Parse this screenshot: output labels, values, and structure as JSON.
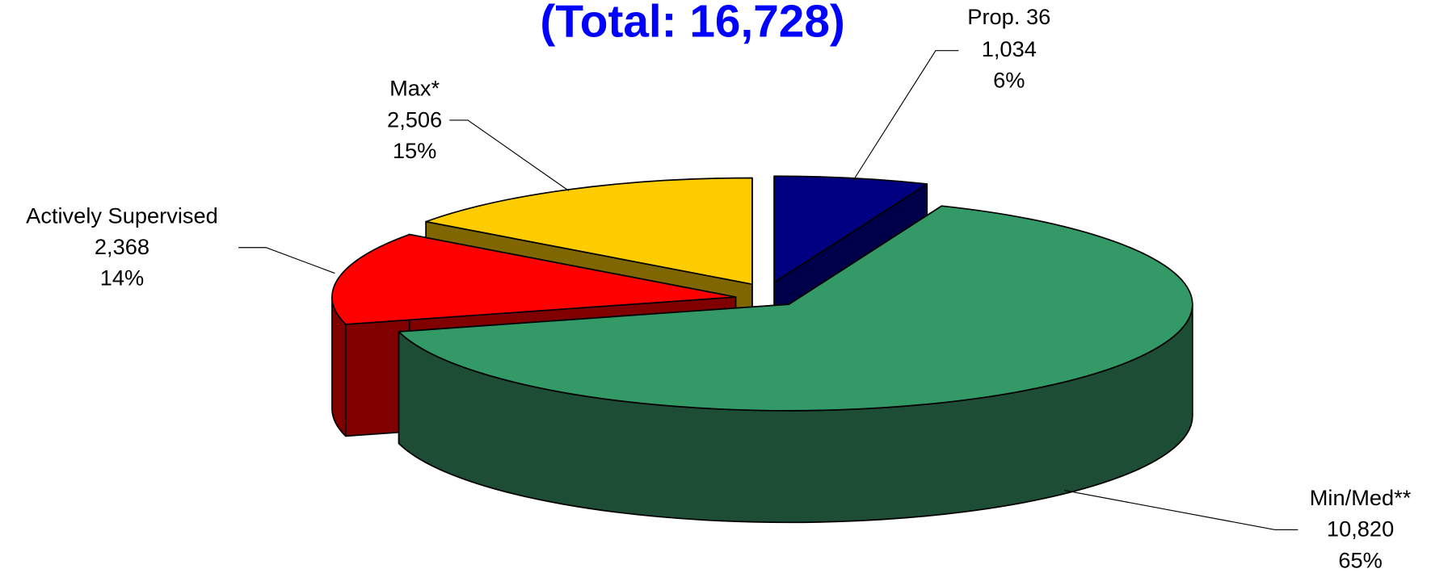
{
  "chart_data": {
    "type": "pie3d",
    "title": "(Total: 16,728)",
    "categories": [
      "Prop. 36",
      "Min/Med**",
      "Actively Supervised",
      "Max*"
    ],
    "values": [
      1034,
      10820,
      2368,
      2506
    ],
    "value_labels": [
      "1,034",
      "10,820",
      "2,368",
      "2,506"
    ],
    "percentages": [
      6,
      65,
      14,
      15
    ],
    "percentage_labels": [
      "6%",
      "65%",
      "14%",
      "15%"
    ],
    "colors": [
      "#000080",
      "#339966",
      "#ff0000",
      "#ffcc00"
    ],
    "side_colors": [
      "#00004a",
      "#1e4d36",
      "#800000",
      "#806600"
    ]
  }
}
